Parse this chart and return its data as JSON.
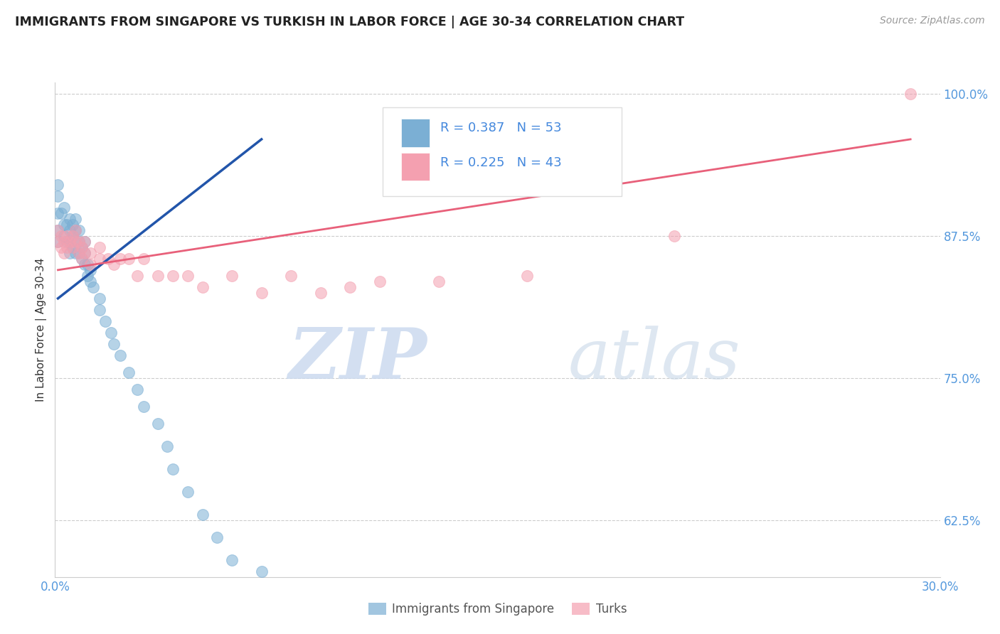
{
  "title": "IMMIGRANTS FROM SINGAPORE VS TURKISH IN LABOR FORCE | AGE 30-34 CORRELATION CHART",
  "source": "Source: ZipAtlas.com",
  "ylabel": "In Labor Force | Age 30-34",
  "xlim": [
    0.0,
    0.3
  ],
  "ylim": [
    0.575,
    1.01
  ],
  "xtick_labels": [
    "0.0%",
    "30.0%"
  ],
  "ytick_labels": [
    "62.5%",
    "75.0%",
    "87.5%",
    "100.0%"
  ],
  "ytick_values": [
    0.625,
    0.75,
    0.875,
    1.0
  ],
  "xtick_values": [
    0.0,
    0.3
  ],
  "legend_label1": "Immigrants from Singapore",
  "legend_label2": "Turks",
  "R1": "0.387",
  "N1": "53",
  "R2": "0.225",
  "N2": "43",
  "color_singapore": "#7BAFD4",
  "color_turks": "#F4A0B0",
  "color_line_singapore": "#2255AA",
  "color_line_turks": "#E8607A",
  "watermark_zip": "ZIP",
  "watermark_atlas": "atlas",
  "grid_color": "#CCCCCC",
  "background_color": "#FFFFFF",
  "singapore_x": [
    0.001,
    0.001,
    0.001,
    0.001,
    0.001,
    0.002,
    0.003,
    0.003,
    0.003,
    0.004,
    0.004,
    0.005,
    0.005,
    0.005,
    0.005,
    0.005,
    0.006,
    0.006,
    0.006,
    0.007,
    0.007,
    0.007,
    0.007,
    0.008,
    0.008,
    0.008,
    0.009,
    0.009,
    0.01,
    0.01,
    0.01,
    0.011,
    0.011,
    0.012,
    0.012,
    0.013,
    0.015,
    0.015,
    0.017,
    0.019,
    0.02,
    0.022,
    0.025,
    0.028,
    0.03,
    0.035,
    0.038,
    0.04,
    0.045,
    0.05,
    0.055,
    0.06,
    0.07
  ],
  "singapore_y": [
    0.87,
    0.88,
    0.895,
    0.91,
    0.92,
    0.895,
    0.875,
    0.885,
    0.9,
    0.87,
    0.885,
    0.86,
    0.87,
    0.88,
    0.89,
    0.87,
    0.865,
    0.875,
    0.885,
    0.86,
    0.87,
    0.88,
    0.89,
    0.86,
    0.87,
    0.88,
    0.855,
    0.865,
    0.85,
    0.86,
    0.87,
    0.84,
    0.85,
    0.835,
    0.845,
    0.83,
    0.82,
    0.81,
    0.8,
    0.79,
    0.78,
    0.77,
    0.755,
    0.74,
    0.725,
    0.71,
    0.69,
    0.67,
    0.65,
    0.63,
    0.61,
    0.59,
    0.58
  ],
  "turks_x": [
    0.001,
    0.001,
    0.002,
    0.002,
    0.003,
    0.003,
    0.004,
    0.004,
    0.005,
    0.006,
    0.006,
    0.007,
    0.007,
    0.008,
    0.008,
    0.009,
    0.009,
    0.01,
    0.01,
    0.012,
    0.012,
    0.015,
    0.015,
    0.018,
    0.02,
    0.022,
    0.025,
    0.028,
    0.03,
    0.035,
    0.04,
    0.045,
    0.05,
    0.06,
    0.07,
    0.08,
    0.09,
    0.1,
    0.11,
    0.13,
    0.16,
    0.21,
    0.29
  ],
  "turks_y": [
    0.88,
    0.87,
    0.875,
    0.865,
    0.87,
    0.86,
    0.875,
    0.865,
    0.87,
    0.875,
    0.865,
    0.87,
    0.88,
    0.87,
    0.86,
    0.855,
    0.865,
    0.86,
    0.87,
    0.86,
    0.85,
    0.855,
    0.865,
    0.855,
    0.85,
    0.855,
    0.855,
    0.84,
    0.855,
    0.84,
    0.84,
    0.84,
    0.83,
    0.84,
    0.825,
    0.84,
    0.825,
    0.83,
    0.835,
    0.835,
    0.84,
    0.875,
    1.0
  ],
  "sg_line_x": [
    0.001,
    0.07
  ],
  "sg_line_y": [
    0.82,
    0.96
  ],
  "tk_line_x": [
    0.001,
    0.29
  ],
  "tk_line_y": [
    0.845,
    0.96
  ]
}
